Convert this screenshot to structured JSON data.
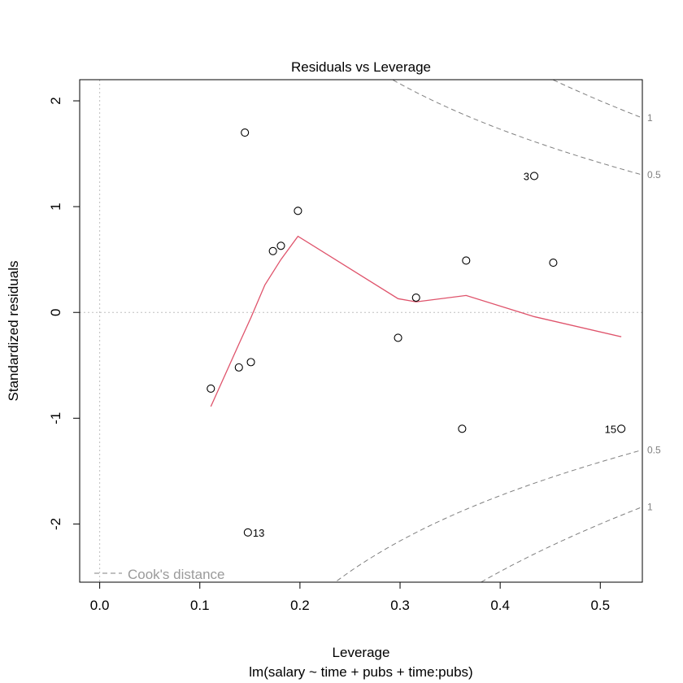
{
  "chart_data": {
    "type": "scatter",
    "title": "Residuals vs Leverage",
    "xlabel": "Leverage",
    "sublabel": "lm(salary ~ time + pubs + time:pubs)",
    "ylabel": "Standardized residuals",
    "xlim": [
      -0.02,
      0.542
    ],
    "ylim": [
      -2.55,
      2.2
    ],
    "x_ticks": [
      {
        "v": 0.0,
        "label": "0.0"
      },
      {
        "v": 0.1,
        "label": "0.1"
      },
      {
        "v": 0.2,
        "label": "0.2"
      },
      {
        "v": 0.3,
        "label": "0.3"
      },
      {
        "v": 0.4,
        "label": "0.4"
      },
      {
        "v": 0.5,
        "label": "0.5"
      }
    ],
    "y_ticks": [
      {
        "v": -2,
        "label": "-2"
      },
      {
        "v": -1,
        "label": "-1"
      },
      {
        "v": 0,
        "label": "0"
      },
      {
        "v": 1,
        "label": "1"
      },
      {
        "v": 2,
        "label": "2"
      }
    ],
    "points": [
      {
        "x": 0.111,
        "y": -0.72,
        "label": ""
      },
      {
        "x": 0.139,
        "y": -0.52,
        "label": ""
      },
      {
        "x": 0.145,
        "y": 1.7,
        "label": ""
      },
      {
        "x": 0.148,
        "y": -2.08,
        "label": "13"
      },
      {
        "x": 0.151,
        "y": -0.47,
        "label": ""
      },
      {
        "x": 0.173,
        "y": 0.58,
        "label": ""
      },
      {
        "x": 0.181,
        "y": 0.63,
        "label": ""
      },
      {
        "x": 0.198,
        "y": 0.96,
        "label": ""
      },
      {
        "x": 0.298,
        "y": -0.24,
        "label": ""
      },
      {
        "x": 0.316,
        "y": 0.14,
        "label": ""
      },
      {
        "x": 0.362,
        "y": -1.1,
        "label": ""
      },
      {
        "x": 0.366,
        "y": 0.49,
        "label": ""
      },
      {
        "x": 0.434,
        "y": 1.29,
        "label": "3"
      },
      {
        "x": 0.453,
        "y": 0.47,
        "label": ""
      },
      {
        "x": 0.521,
        "y": -1.1,
        "label": "15"
      }
    ],
    "smooth_line": {
      "x": [
        0.111,
        0.139,
        0.151,
        0.165,
        0.181,
        0.198,
        0.298,
        0.316,
        0.366,
        0.434,
        0.521
      ],
      "y": [
        -0.89,
        -0.3,
        -0.05,
        0.26,
        0.5,
        0.72,
        0.13,
        0.1,
        0.16,
        -0.04,
        -0.23
      ]
    },
    "cooks_distance": {
      "levels": [
        0.5,
        1
      ],
      "level_labels": [
        "0.5",
        "1"
      ],
      "legend": "Cook's distance"
    },
    "reference_lines": {
      "y_zero": 0,
      "x_zero": 0
    },
    "colors": {
      "points": "#000000",
      "smooth": "#DF536B",
      "cooks": "#808080",
      "reference": "#bfbfbf"
    }
  }
}
